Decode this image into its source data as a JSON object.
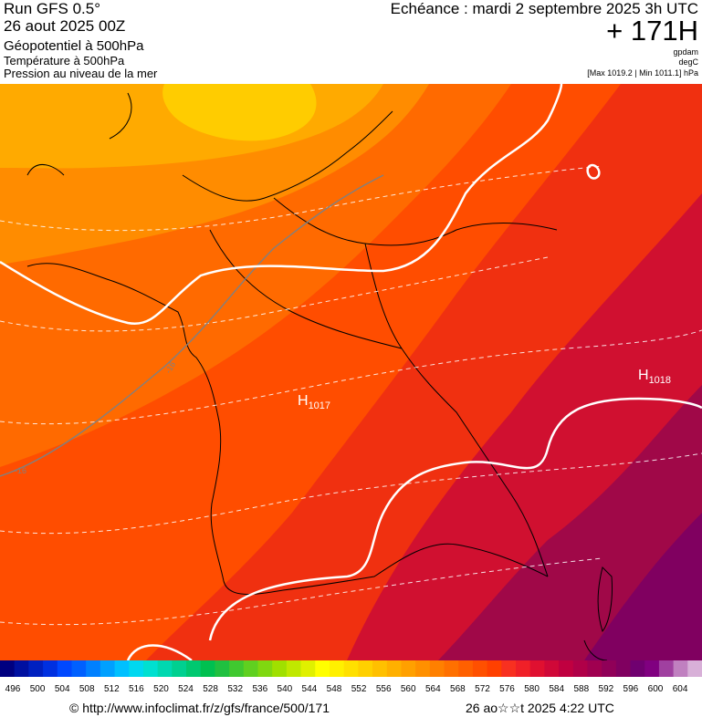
{
  "header": {
    "run": "Run GFS 0.5°",
    "run_date": "26 aout 2025 00Z",
    "variable": "Géopotentiel à 500hPa",
    "temperature": "Température à 500hPa",
    "pressure": "Pression au niveau de la mer",
    "echeance": "Echéance : mardi 2 septembre 2025 3h UTC",
    "lead_time": "+ 171H",
    "unit_geo": "gpdam",
    "unit_temp": "degC",
    "minmax": "[Max 1019.2 | Min 1011.1] hPa"
  },
  "map": {
    "highs": [
      {
        "letter": "H",
        "value": "1017"
      },
      {
        "letter": "H",
        "value": "1018"
      }
    ],
    "isotherm_labels": [
      "-16",
      "-16"
    ],
    "colors": {
      "yellow": "#ffcc00",
      "orange_light": "#ffaa00",
      "orange": "#ff8c00",
      "orange_dark": "#ff6a00",
      "red_orange": "#ff4d00",
      "red": "#f03010",
      "crimson": "#d01030",
      "magenta": "#a00848",
      "purple": "#800060"
    }
  },
  "scale": {
    "ticks": [
      "496",
      "500",
      "504",
      "508",
      "512",
      "516",
      "520",
      "524",
      "528",
      "532",
      "536",
      "540",
      "544",
      "548",
      "552",
      "556",
      "560",
      "564",
      "568",
      "572",
      "576",
      "580",
      "584",
      "588",
      "592",
      "596",
      "600",
      "604"
    ],
    "colors": [
      "#000080",
      "#0010a0",
      "#0020c0",
      "#0030e0",
      "#0048ff",
      "#0060ff",
      "#0080ff",
      "#00a0ff",
      "#00c0ff",
      "#00d8f0",
      "#00e0d0",
      "#00d8b0",
      "#00d090",
      "#00c870",
      "#00c050",
      "#20c040",
      "#40c830",
      "#60d020",
      "#80d810",
      "#a0e000",
      "#c0e800",
      "#e0f000",
      "#ffff00",
      "#fff000",
      "#ffe000",
      "#ffd000",
      "#ffc000",
      "#ffb000",
      "#ffa000",
      "#ff9000",
      "#ff8000",
      "#ff7000",
      "#ff6000",
      "#ff5000",
      "#ff4000",
      "#f83020",
      "#f02028",
      "#e01030",
      "#d00838",
      "#c00040",
      "#b00048",
      "#a00050",
      "#900058",
      "#800060",
      "#700070",
      "#800080",
      "#a040a0",
      "#c080c0",
      "#d8b0d8"
    ]
  },
  "footer": {
    "url": "© http://www.infoclimat.fr/z/gfs/france/500/171",
    "timestamp": "26 ao☆☆t 2025  4:22 UTC"
  }
}
